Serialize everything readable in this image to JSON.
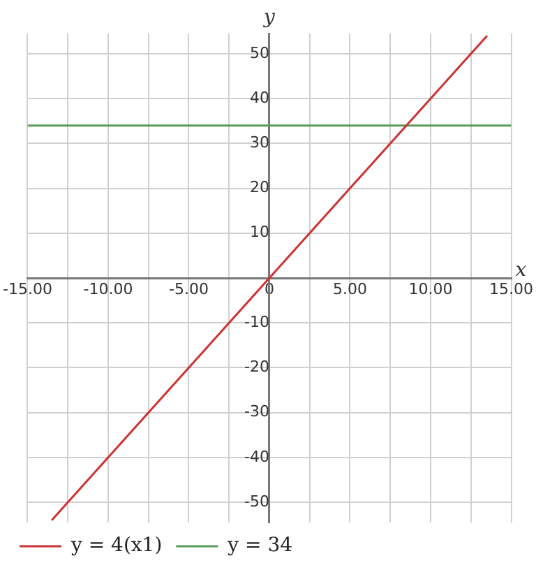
{
  "chart_data": {
    "type": "line",
    "xlabel": "x",
    "ylabel": "y",
    "xlim": [
      -15,
      15
    ],
    "ylim": [
      -54.5,
      54.5
    ],
    "xticks": [
      {
        "value": -15,
        "label": "-15.00"
      },
      {
        "value": -12.5,
        "label": null
      },
      {
        "value": -10,
        "label": "-10.00"
      },
      {
        "value": -7.5,
        "label": null
      },
      {
        "value": -5,
        "label": "-5.00"
      },
      {
        "value": -2.5,
        "label": null
      },
      0,
      {
        "value": 2.5,
        "label": null
      },
      {
        "value": 5,
        "label": "5.00"
      },
      {
        "value": 7.5,
        "label": null
      },
      {
        "value": 10,
        "label": "10.00"
      },
      {
        "value": 12.5,
        "label": null
      },
      {
        "value": 15,
        "label": "15.00"
      }
    ],
    "yticks": [
      -50,
      -40,
      -30,
      -20,
      -10,
      {
        "value": 0,
        "label": null
      },
      10,
      20,
      30,
      40,
      50
    ],
    "series": [
      {
        "name": "y = 4(x1)",
        "color": "#cc3333",
        "x": [
          -13.5,
          13.5
        ],
        "values": [
          -54,
          54
        ]
      },
      {
        "name": "y = 34",
        "color": "#5a9a5a",
        "x": [
          -15,
          15
        ],
        "values": [
          34,
          34
        ]
      }
    ],
    "grid": true,
    "legend": "bottom left",
    "marker": "none",
    "line_style": "solid"
  }
}
